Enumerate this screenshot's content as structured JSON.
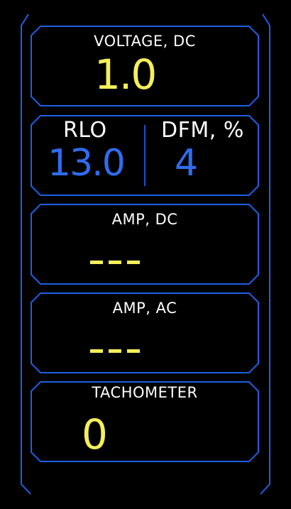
{
  "colors": {
    "border": "#1f5fe6",
    "label": "#ffffff",
    "value_yellow": "#f3f05a",
    "value_blue": "#2f6cf0",
    "background": "#000000"
  },
  "panels": {
    "voltage_dc": {
      "label": "VOLTAGE, DC",
      "value": "1.0"
    },
    "rlo_dfm": {
      "rlo_label": "RLO",
      "rlo_value": "13.0",
      "dfm_label": "DFM, %",
      "dfm_value": "4"
    },
    "amp_dc": {
      "label": "AMP, DC",
      "value": "---"
    },
    "amp_ac": {
      "label": "AMP, AC",
      "value": "---"
    },
    "tachometer": {
      "label": "TACHOMETER",
      "value": "0"
    }
  }
}
